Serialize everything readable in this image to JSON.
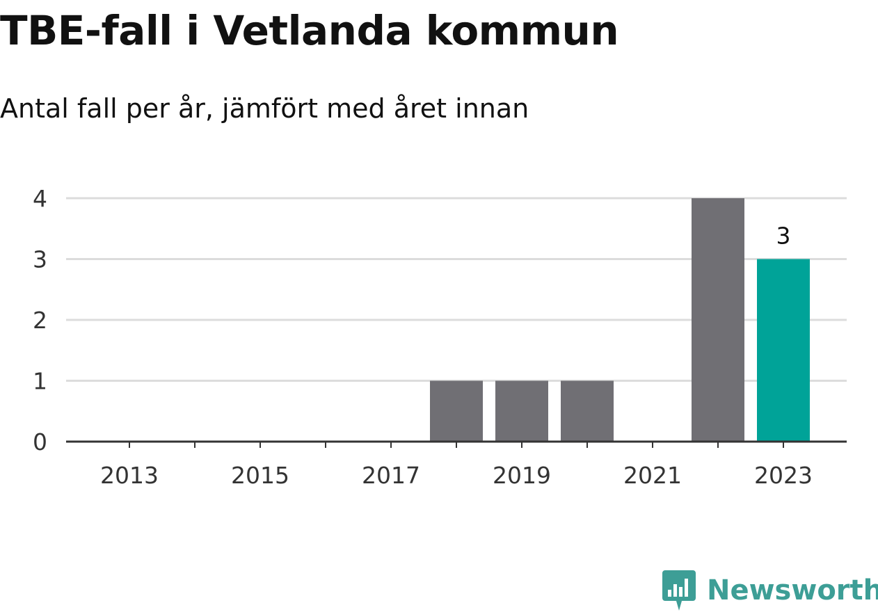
{
  "header": {
    "title": "TBE-fall i Vetlanda kommun",
    "subtitle": "Antal fall per år, jämfört med året innan"
  },
  "brand": {
    "name": "Newsworthy",
    "icon": "newsworthy-logo-icon",
    "color": "#3d9e96"
  },
  "colors": {
    "bar_default": "#706f74",
    "bar_highlight": "#00a398",
    "grid": "#dcdcdc",
    "axis": "#333333"
  },
  "chart_data": {
    "type": "bar",
    "title": "TBE-fall i Vetlanda kommun",
    "subtitle": "Antal fall per år, jämfört med året innan",
    "categories": [
      2013,
      2014,
      2015,
      2016,
      2017,
      2018,
      2019,
      2020,
      2021,
      2022,
      2023
    ],
    "values": [
      0,
      0,
      0,
      0,
      0,
      1,
      1,
      1,
      0,
      4,
      3
    ],
    "highlight_category": 2023,
    "x_tick_labels": [
      "2013",
      "2015",
      "2017",
      "2019",
      "2021",
      "2023"
    ],
    "y_ticks": [
      0,
      1,
      2,
      3,
      4
    ],
    "ylim": [
      0,
      4
    ],
    "grid": true,
    "data_labels": [
      {
        "category": 2023,
        "text": "3"
      }
    ],
    "xlabel": "",
    "ylabel": ""
  }
}
